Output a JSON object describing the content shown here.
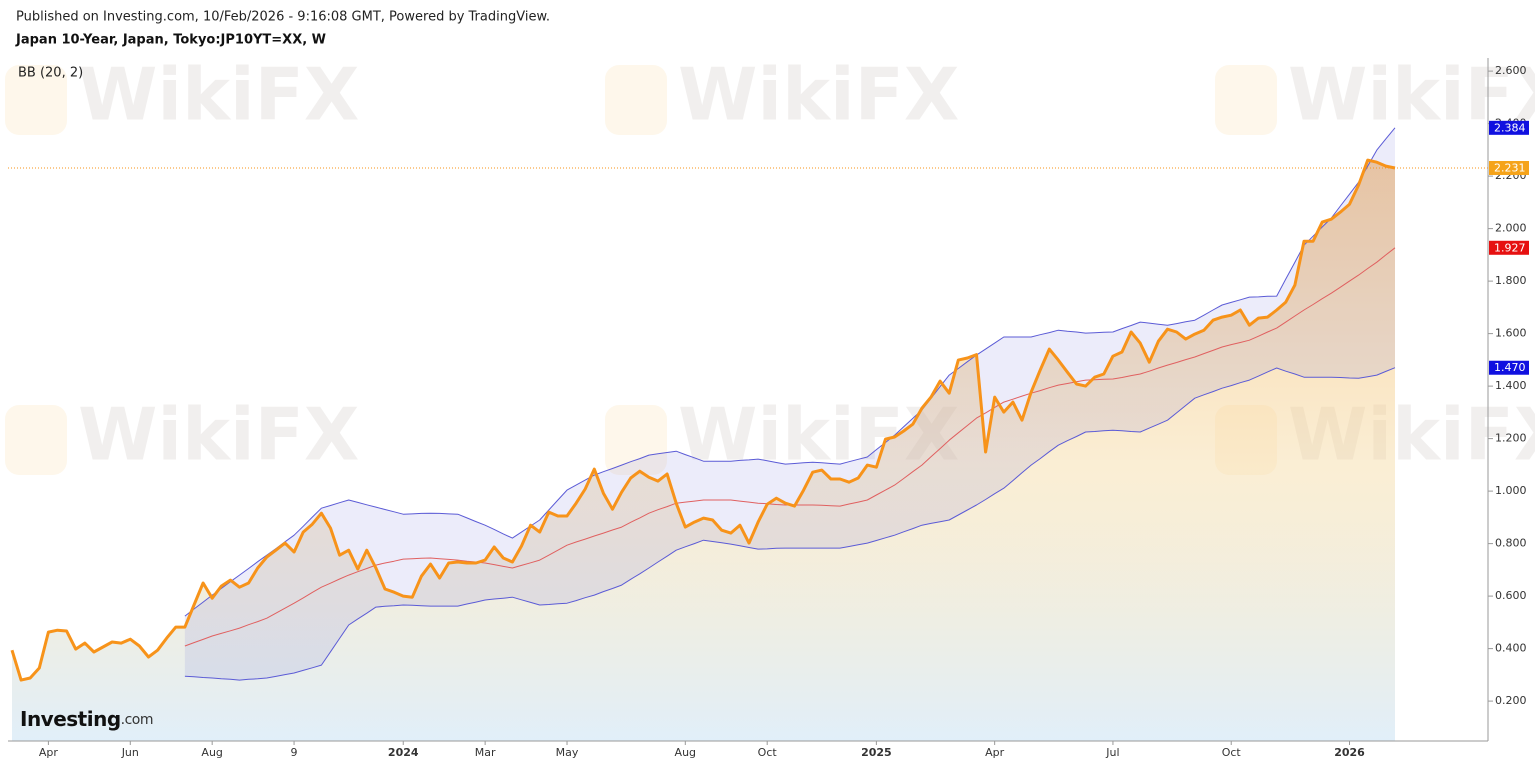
{
  "header": "Published on Investing.com, 10/Feb/2026 - 9:16:08 GMT, Powered by TradingView.",
  "watermark": "WikiFX",
  "logo": "Investing",
  "logo_suffix": ".com",
  "chart_data": {
    "type": "line",
    "title": "Japan 10-Year, Japan, Tokyo:JP10YT=XX, W",
    "indicator": "BB (20, 2)",
    "grid": false,
    "band_fill": "#6a6ad8",
    "categories": [
      null,
      null,
      null,
      null,
      "Apr",
      null,
      null,
      null,
      null,
      null,
      null,
      null,
      null,
      "Jun",
      null,
      null,
      null,
      null,
      null,
      null,
      null,
      null,
      "Aug",
      null,
      null,
      null,
      null,
      null,
      null,
      null,
      null,
      "9",
      null,
      null,
      null,
      null,
      null,
      null,
      null,
      null,
      null,
      null,
      null,
      "2024",
      null,
      null,
      null,
      null,
      null,
      null,
      null,
      null,
      "Mar",
      null,
      null,
      null,
      null,
      null,
      null,
      null,
      null,
      "May",
      null,
      null,
      null,
      null,
      null,
      null,
      null,
      null,
      null,
      null,
      null,
      null,
      "Aug",
      null,
      null,
      null,
      null,
      null,
      null,
      null,
      null,
      "Oct",
      null,
      null,
      null,
      null,
      null,
      null,
      null,
      null,
      null,
      null,
      null,
      "2025",
      null,
      null,
      null,
      null,
      null,
      null,
      null,
      null,
      null,
      null,
      null,
      null,
      "Apr",
      null,
      null,
      null,
      null,
      null,
      null,
      null,
      null,
      null,
      null,
      null,
      null,
      "Jul",
      null,
      null,
      null,
      null,
      null,
      null,
      null,
      null,
      null,
      null,
      null,
      null,
      "Oct",
      null,
      null,
      null,
      null,
      null,
      null,
      null,
      null,
      null,
      null,
      null,
      null,
      "2026",
      null,
      null,
      null,
      null,
      null
    ],
    "ylim": [
      0.048,
      2.65
    ],
    "yticks": [
      {
        "value": 0.2,
        "label": "0.200"
      },
      {
        "value": 0.4,
        "label": "0.400"
      },
      {
        "value": 0.6,
        "label": "0.600"
      },
      {
        "value": 0.8,
        "label": "0.800"
      },
      {
        "value": 1.0,
        "label": "1.000"
      },
      {
        "value": 1.2,
        "label": "1.200"
      },
      {
        "value": 1.4,
        "label": "1.400"
      },
      {
        "value": 1.6,
        "label": "1.600"
      },
      {
        "value": 1.8,
        "label": "1.800"
      },
      {
        "value": 2.0,
        "label": "2.000"
      },
      {
        "value": 2.2,
        "label": "2.200"
      },
      {
        "value": 2.4,
        "label": "2.400"
      },
      {
        "value": 2.6,
        "label": "2.600"
      }
    ],
    "series": [
      {
        "color": "#f7931a",
        "width": 3,
        "area": true,
        "last_label": "2.231",
        "label_color": "#f5a31a",
        "values": [
          0.394,
          0.28,
          0.288,
          0.326,
          0.463,
          0.47,
          0.467,
          0.398,
          0.421,
          0.387,
          0.406,
          0.425,
          0.421,
          0.436,
          0.41,
          0.368,
          0.394,
          0.44,
          0.482,
          0.482,
          0.566,
          0.65,
          0.592,
          0.638,
          0.661,
          0.634,
          0.65,
          0.707,
          0.749,
          0.775,
          0.802,
          0.768,
          0.844,
          0.874,
          0.916,
          0.859,
          0.756,
          0.775,
          0.703,
          0.775,
          0.707,
          0.627,
          0.615,
          0.6,
          0.596,
          0.676,
          0.722,
          0.669,
          0.726,
          0.73,
          0.726,
          0.726,
          0.737,
          0.787,
          0.745,
          0.73,
          0.791,
          0.87,
          0.844,
          0.92,
          0.905,
          0.905,
          0.954,
          1.008,
          1.084,
          0.992,
          0.931,
          0.996,
          1.05,
          1.076,
          1.053,
          1.038,
          1.065,
          0.954,
          0.863,
          0.882,
          0.897,
          0.89,
          0.851,
          0.84,
          0.87,
          0.802,
          0.882,
          0.95,
          0.973,
          0.954,
          0.943,
          1.004,
          1.072,
          1.08,
          1.046,
          1.046,
          1.034,
          1.05,
          1.099,
          1.091,
          1.198,
          1.206,
          1.229,
          1.255,
          1.316,
          1.358,
          1.419,
          1.373,
          1.499,
          1.507,
          1.52,
          1.149,
          1.358,
          1.301,
          1.339,
          1.27,
          1.377,
          1.461,
          1.541,
          1.499,
          1.453,
          1.408,
          1.4,
          1.434,
          1.446,
          1.514,
          1.53,
          1.606,
          1.564,
          1.491,
          1.571,
          1.617,
          1.606,
          1.579,
          1.598,
          1.613,
          1.651,
          1.663,
          1.67,
          1.69,
          1.632,
          1.659,
          1.663,
          1.69,
          1.72,
          1.785,
          1.952,
          1.952,
          2.025,
          2.036,
          2.063,
          2.093,
          2.166,
          2.261,
          2.253,
          2.238,
          2.231
        ]
      },
      {
        "color": "#5b5bd6",
        "width": 1,
        "last_label": "2.384",
        "label_color": "#1010e0",
        "values": [
          null,
          null,
          null,
          null,
          null,
          null,
          null,
          null,
          null,
          null,
          null,
          null,
          null,
          null,
          null,
          null,
          null,
          null,
          null,
          0.524,
          0.551,
          0.577,
          0.604,
          0.629,
          0.655,
          0.68,
          0.705,
          0.731,
          0.756,
          0.781,
          0.807,
          0.832,
          0.866,
          0.901,
          0.935,
          0.945,
          0.956,
          0.966,
          0.957,
          0.948,
          0.939,
          0.93,
          0.921,
          0.912,
          0.913,
          0.915,
          0.916,
          0.915,
          0.913,
          0.912,
          0.898,
          0.884,
          0.87,
          0.854,
          0.837,
          0.821,
          0.844,
          0.867,
          0.89,
          0.928,
          0.966,
          1.004,
          1.023,
          1.042,
          1.061,
          1.074,
          1.086,
          1.099,
          1.112,
          1.124,
          1.137,
          1.142,
          1.147,
          1.152,
          1.139,
          1.127,
          1.114,
          1.114,
          1.114,
          1.114,
          1.117,
          1.119,
          1.122,
          1.116,
          1.109,
          1.103,
          1.105,
          1.108,
          1.11,
          1.108,
          1.105,
          1.103,
          1.112,
          1.121,
          1.13,
          1.158,
          1.185,
          1.213,
          1.245,
          1.277,
          1.309,
          1.353,
          1.398,
          1.442,
          1.467,
          1.493,
          1.518,
          1.541,
          1.564,
          1.587,
          1.587,
          1.587,
          1.587,
          1.596,
          1.604,
          1.613,
          1.609,
          1.606,
          1.602,
          1.603,
          1.605,
          1.606,
          1.619,
          1.631,
          1.644,
          1.64,
          1.636,
          1.632,
          1.638,
          1.645,
          1.651,
          1.67,
          1.69,
          1.709,
          1.719,
          1.729,
          1.739,
          1.74,
          1.742,
          1.743,
          1.808,
          1.872,
          1.937,
          1.971,
          2.006,
          2.04,
          2.086,
          2.131,
          2.177,
          2.238,
          2.299,
          2.342,
          2.384
        ]
      },
      {
        "color": "#e06060",
        "width": 1,
        "last_label": "1.927",
        "label_color": "#e61010",
        "values": [
          null,
          null,
          null,
          null,
          null,
          null,
          null,
          null,
          null,
          null,
          null,
          null,
          null,
          null,
          null,
          null,
          null,
          null,
          null,
          0.41,
          0.423,
          0.435,
          0.448,
          0.458,
          0.468,
          0.478,
          0.491,
          0.503,
          0.516,
          0.535,
          0.554,
          0.573,
          0.593,
          0.614,
          0.634,
          0.649,
          0.665,
          0.68,
          0.693,
          0.705,
          0.718,
          0.726,
          0.733,
          0.741,
          0.742,
          0.744,
          0.745,
          0.742,
          0.74,
          0.737,
          0.733,
          0.73,
          0.726,
          0.72,
          0.713,
          0.707,
          0.717,
          0.727,
          0.737,
          0.756,
          0.775,
          0.794,
          0.806,
          0.817,
          0.829,
          0.84,
          0.852,
          0.863,
          0.881,
          0.898,
          0.916,
          0.929,
          0.941,
          0.954,
          0.958,
          0.962,
          0.966,
          0.966,
          0.966,
          0.966,
          0.962,
          0.958,
          0.954,
          0.952,
          0.949,
          0.947,
          0.947,
          0.947,
          0.947,
          0.946,
          0.944,
          0.943,
          0.951,
          0.958,
          0.966,
          0.985,
          1.004,
          1.023,
          1.048,
          1.074,
          1.099,
          1.131,
          1.162,
          1.194,
          1.222,
          1.25,
          1.278,
          1.298,
          1.319,
          1.339,
          1.35,
          1.362,
          1.373,
          1.383,
          1.394,
          1.404,
          1.41,
          1.417,
          1.423,
          1.424,
          1.426,
          1.427,
          1.433,
          1.44,
          1.446,
          1.457,
          1.469,
          1.48,
          1.49,
          1.501,
          1.511,
          1.524,
          1.536,
          1.549,
          1.558,
          1.566,
          1.575,
          1.59,
          1.606,
          1.621,
          1.644,
          1.667,
          1.69,
          1.711,
          1.733,
          1.754,
          1.777,
          1.8,
          1.823,
          1.848,
          1.872,
          1.9,
          1.927
        ]
      },
      {
        "color": "#5b5bd6",
        "width": 1,
        "last_label": "1.470",
        "label_color": "#1010e0",
        "values": [
          null,
          null,
          null,
          null,
          null,
          null,
          null,
          null,
          null,
          null,
          null,
          null,
          null,
          null,
          null,
          null,
          null,
          null,
          null,
          0.295,
          0.293,
          0.29,
          0.288,
          0.285,
          0.283,
          0.28,
          0.283,
          0.285,
          0.288,
          0.294,
          0.301,
          0.307,
          0.317,
          0.327,
          0.337,
          0.388,
          0.439,
          0.49,
          0.513,
          0.535,
          0.558,
          0.561,
          0.563,
          0.566,
          0.565,
          0.563,
          0.562,
          0.562,
          0.562,
          0.562,
          0.57,
          0.577,
          0.585,
          0.589,
          0.592,
          0.596,
          0.586,
          0.576,
          0.566,
          0.568,
          0.571,
          0.573,
          0.583,
          0.594,
          0.604,
          0.617,
          0.629,
          0.642,
          0.664,
          0.685,
          0.707,
          0.73,
          0.752,
          0.775,
          0.788,
          0.8,
          0.813,
          0.808,
          0.803,
          0.798,
          0.792,
          0.785,
          0.779,
          0.78,
          0.782,
          0.783,
          0.783,
          0.783,
          0.783,
          0.783,
          0.783,
          0.783,
          0.789,
          0.796,
          0.802,
          0.812,
          0.822,
          0.832,
          0.845,
          0.857,
          0.87,
          0.877,
          0.883,
          0.89,
          0.909,
          0.928,
          0.947,
          0.968,
          0.99,
          1.011,
          1.04,
          1.07,
          1.099,
          1.124,
          1.15,
          1.175,
          1.192,
          1.208,
          1.225,
          1.227,
          1.23,
          1.232,
          1.23,
          1.227,
          1.225,
          1.24,
          1.255,
          1.27,
          1.298,
          1.326,
          1.354,
          1.367,
          1.379,
          1.392,
          1.402,
          1.413,
          1.423,
          1.438,
          1.454,
          1.469,
          1.457,
          1.446,
          1.434,
          1.434,
          1.434,
          1.434,
          1.433,
          1.431,
          1.43,
          1.436,
          1.442,
          1.456,
          1.47
        ]
      }
    ]
  }
}
